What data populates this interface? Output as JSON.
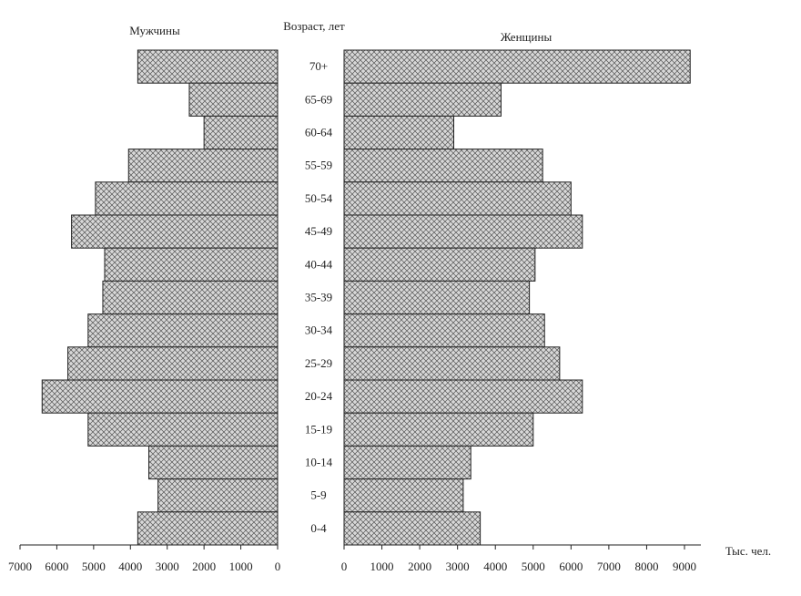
{
  "chart_data": {
    "type": "population-pyramid",
    "category_axis_label": "Возраст, лет",
    "value_axis_label": "Тыс. чел.",
    "categories": [
      "70+",
      "65-69",
      "60-64",
      "55-59",
      "50-54",
      "45-49",
      "40-44",
      "35-39",
      "30-34",
      "25-29",
      "20-24",
      "15-19",
      "10-14",
      "5-9",
      "0-4"
    ],
    "series": [
      {
        "name": "Мужчины",
        "color": "#c8c8c8",
        "side": "left",
        "values": [
          3800,
          2400,
          2000,
          4050,
          4950,
          5600,
          4700,
          4750,
          5150,
          5700,
          6400,
          5150,
          3500,
          3250,
          3800
        ],
        "xlim": [
          7000,
          0
        ],
        "xticks": [
          7000,
          6000,
          5000,
          4000,
          3000,
          2000,
          1000,
          0
        ]
      },
      {
        "name": "Женщины",
        "color": "#c8c8c8",
        "side": "right",
        "values": [
          9150,
          4150,
          2900,
          5250,
          6000,
          6300,
          5050,
          4900,
          5300,
          5700,
          6300,
          5000,
          3350,
          3150,
          3600
        ],
        "xlim": [
          0,
          9000
        ],
        "xticks": [
          0,
          1000,
          2000,
          3000,
          4000,
          5000,
          6000,
          7000,
          8000,
          9000
        ]
      }
    ]
  }
}
